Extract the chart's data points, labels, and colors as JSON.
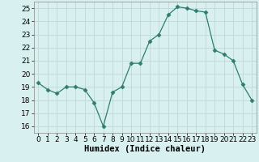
{
  "x": [
    0,
    1,
    2,
    3,
    4,
    5,
    6,
    7,
    8,
    9,
    10,
    11,
    12,
    13,
    14,
    15,
    16,
    17,
    18,
    19,
    20,
    21,
    22,
    23
  ],
  "y": [
    19.3,
    18.8,
    18.5,
    19.0,
    19.0,
    18.8,
    17.8,
    16.0,
    18.6,
    19.0,
    20.8,
    20.8,
    22.5,
    23.0,
    24.5,
    25.1,
    25.0,
    24.8,
    24.7,
    21.8,
    21.5,
    21.0,
    19.2,
    18.0
  ],
  "line_color": "#2e7d6e",
  "marker": "D",
  "marker_size": 2.5,
  "bg_color": "#d8f0f0",
  "grid_color": "#c0d8d8",
  "xlabel": "Humidex (Indice chaleur)",
  "ylabel": "",
  "xlim": [
    -0.5,
    23.5
  ],
  "ylim": [
    15.5,
    25.5
  ],
  "yticks": [
    16,
    17,
    18,
    19,
    20,
    21,
    22,
    23,
    24,
    25
  ],
  "xticks": [
    0,
    1,
    2,
    3,
    4,
    5,
    6,
    7,
    8,
    9,
    10,
    11,
    12,
    13,
    14,
    15,
    16,
    17,
    18,
    19,
    20,
    21,
    22,
    23
  ],
  "tick_label_fontsize": 6.5,
  "xlabel_fontsize": 7.5
}
